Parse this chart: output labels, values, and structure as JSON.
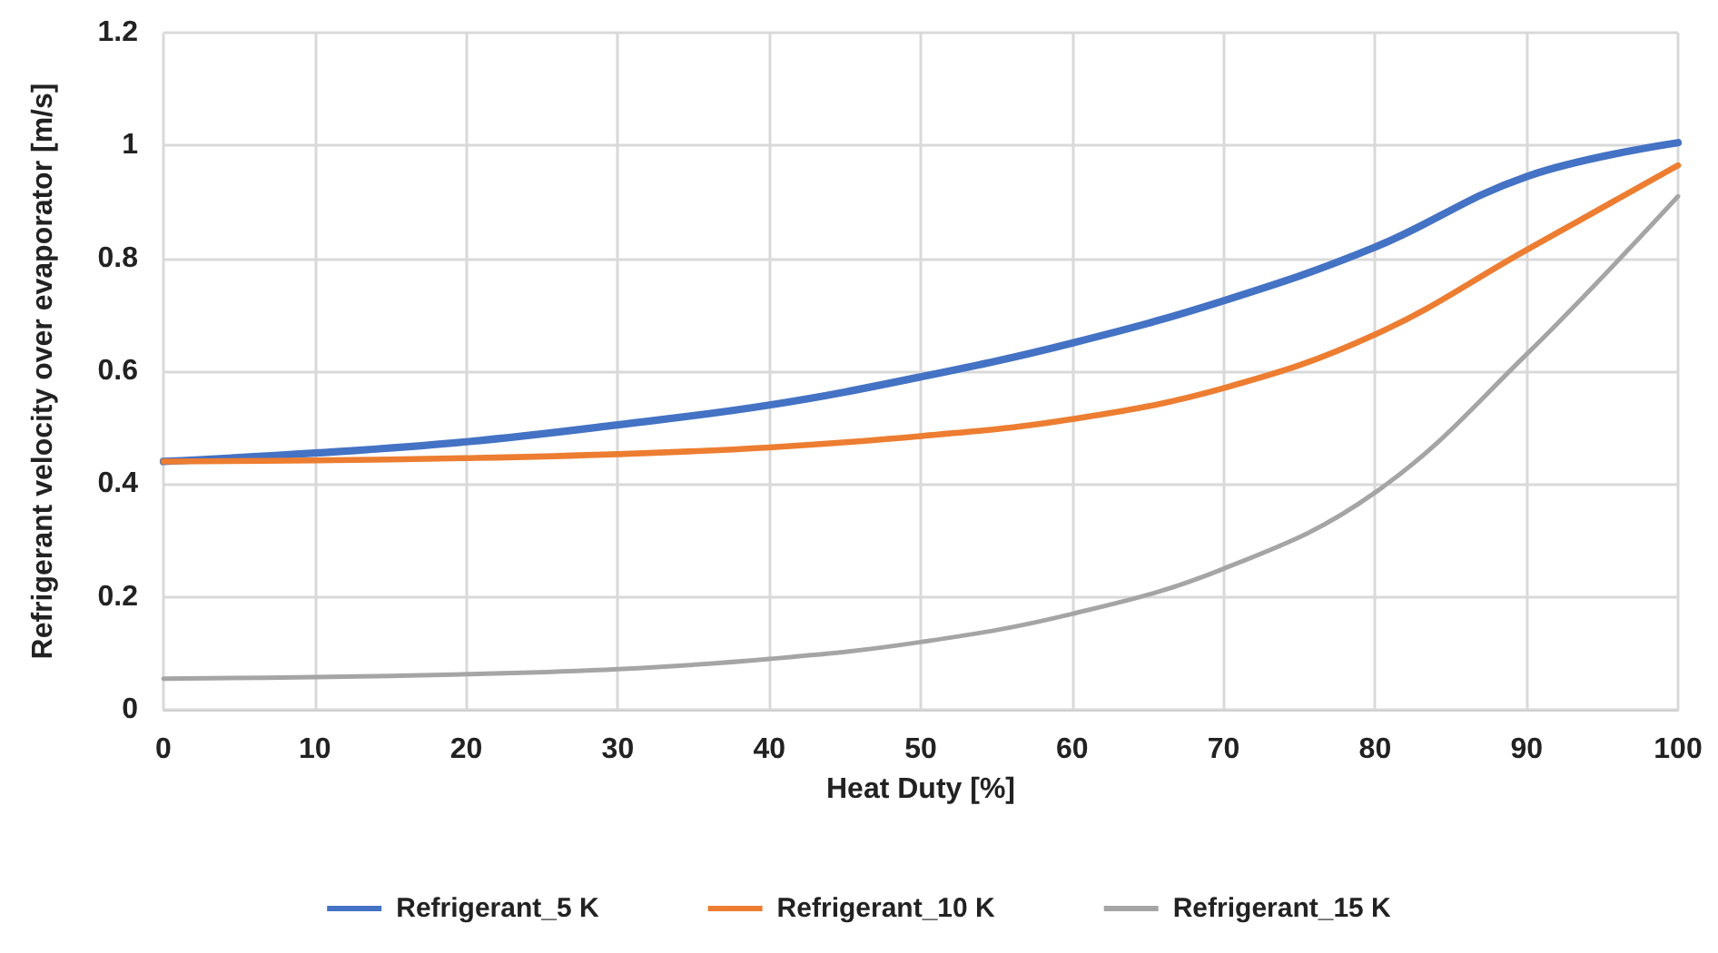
{
  "chart_data": {
    "type": "line",
    "xlabel": "Heat Duty [%]",
    "ylabel": "Refrigerant velocity over evaporator [m/s]",
    "x": [
      0,
      10,
      20,
      30,
      40,
      50,
      60,
      70,
      80,
      90,
      100
    ],
    "series": [
      {
        "name": "Refrigerant_5 K",
        "color": "#4472c4",
        "values": [
          0.44,
          0.455,
          0.475,
          0.505,
          0.54,
          0.59,
          0.65,
          0.725,
          0.82,
          0.945,
          1.005
        ]
      },
      {
        "name": "Refrigerant_10 K",
        "color": "#ed7d31",
        "values": [
          0.44,
          0.442,
          0.446,
          0.453,
          0.465,
          0.485,
          0.515,
          0.57,
          0.665,
          0.815,
          0.965
        ]
      },
      {
        "name": "Refrigerant_15 K",
        "color": "#a5a5a5",
        "values": [
          0.055,
          0.058,
          0.063,
          0.072,
          0.09,
          0.12,
          0.17,
          0.25,
          0.385,
          0.63,
          0.91
        ]
      }
    ],
    "xlim": [
      0,
      100
    ],
    "xticks": [
      0,
      10,
      20,
      30,
      40,
      50,
      60,
      70,
      80,
      90,
      100
    ],
    "ylim": [
      0,
      1.2
    ],
    "yticks": [
      0,
      0.2,
      0.4,
      0.6,
      0.8,
      1,
      1.2
    ],
    "grid": true,
    "legend": "bottom",
    "marker": "none",
    "line_style": "solid"
  }
}
